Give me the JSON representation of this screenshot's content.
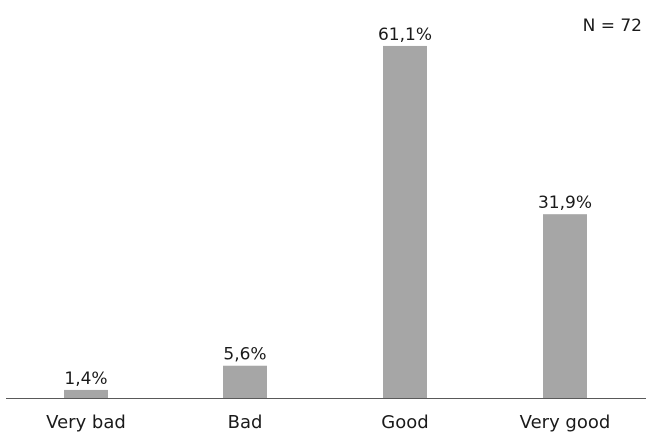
{
  "chart_data": {
    "type": "bar",
    "categories": [
      "Very bad",
      "Bad",
      "Good",
      "Very good"
    ],
    "values": [
      1.4,
      5.6,
      61.1,
      31.9
    ],
    "value_labels": [
      "1,4%",
      "5,6%",
      "61,1%",
      "31,9%"
    ],
    "title": "",
    "xlabel": "",
    "ylabel": "",
    "ylim": [
      0,
      63
    ],
    "grid": false,
    "annotation": "N = 72",
    "colors": {
      "bar": "#a6a6a6",
      "axis": "#595959",
      "text": "#1a1a1a"
    }
  }
}
